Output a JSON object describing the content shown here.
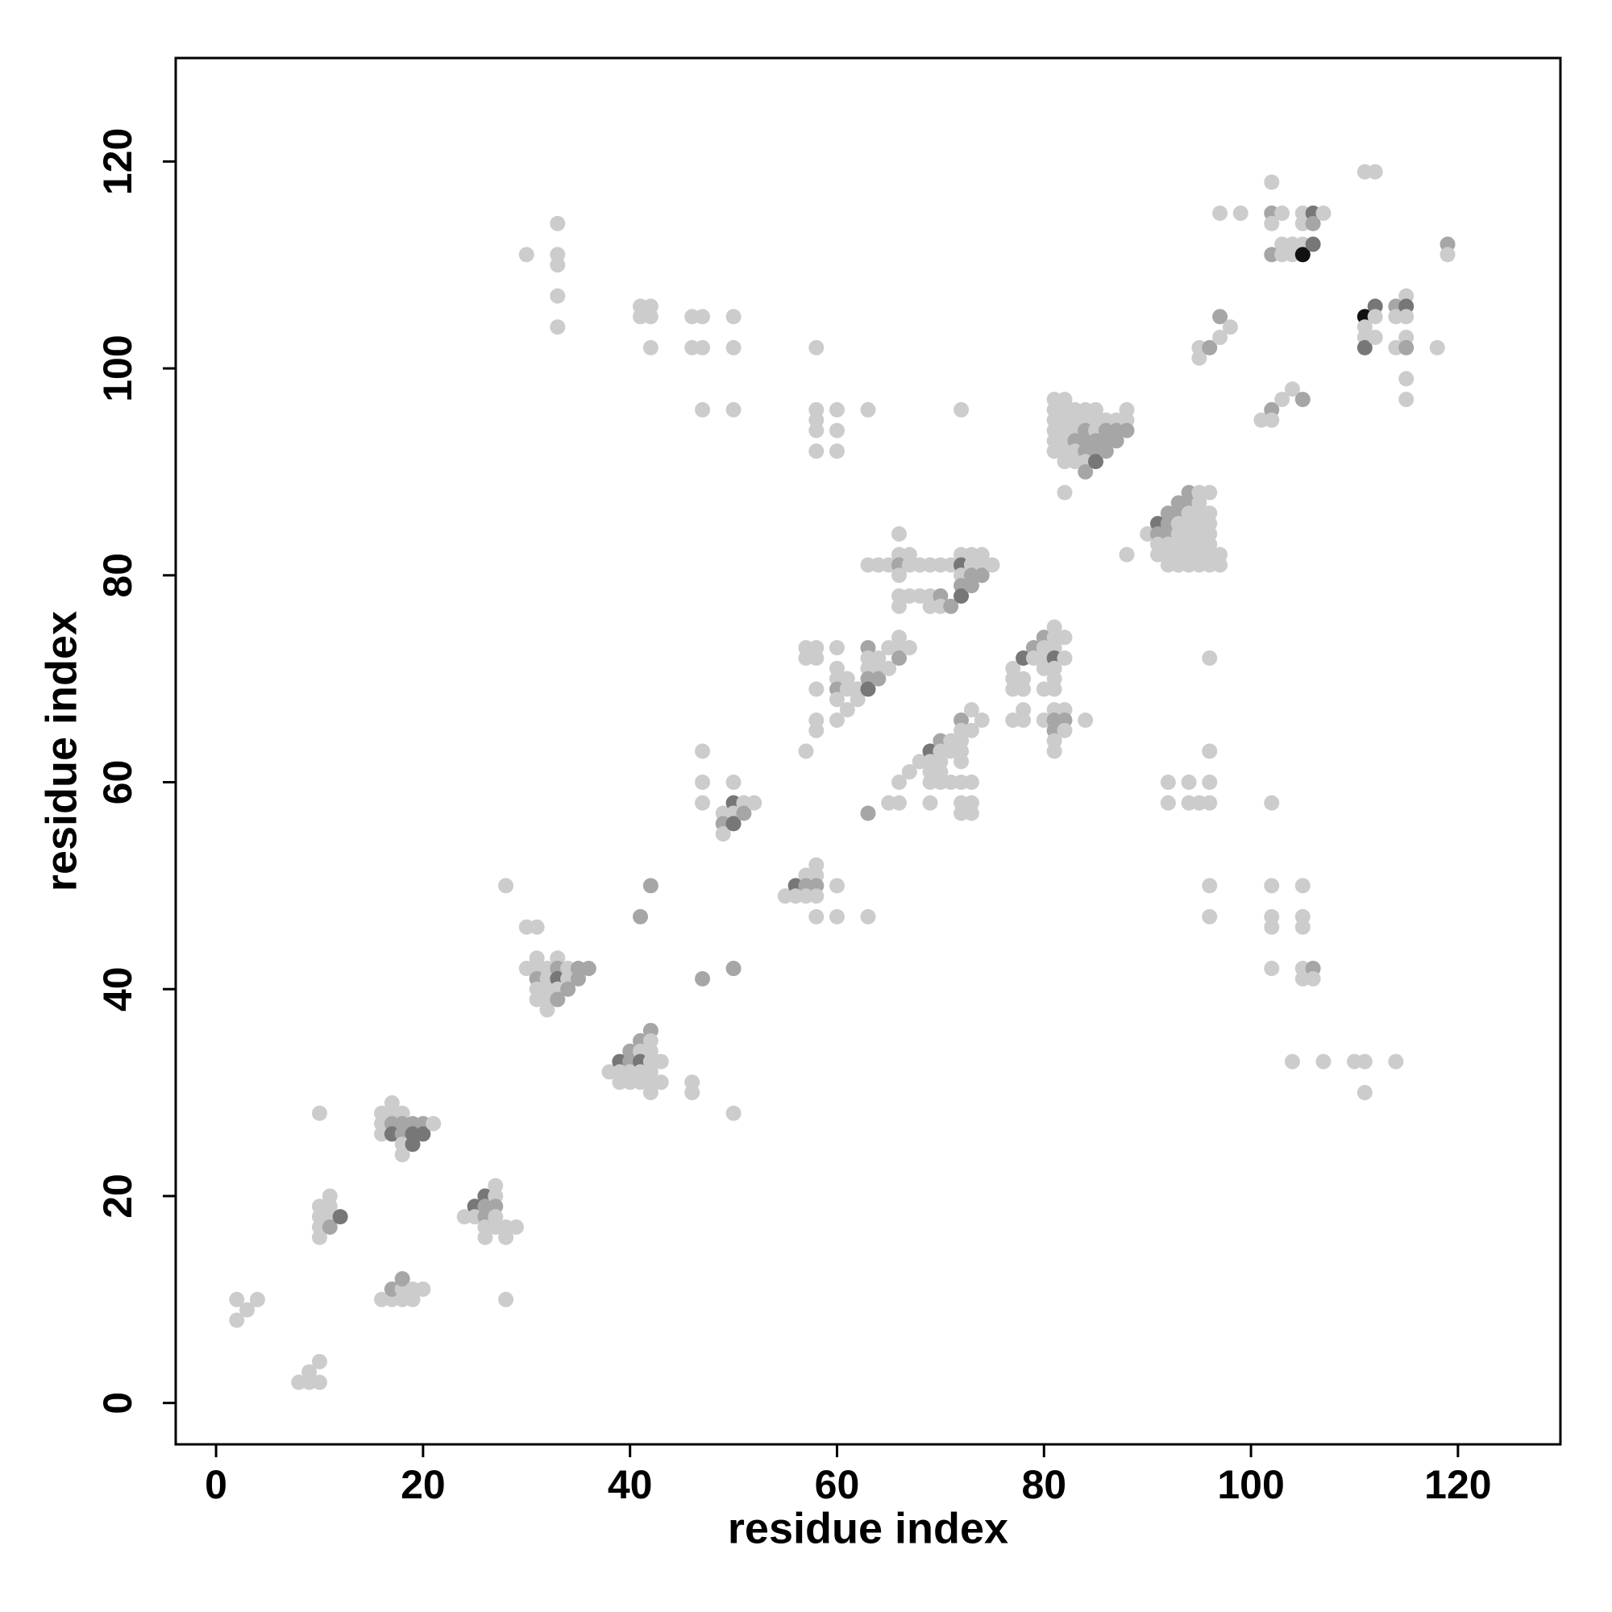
{
  "chart_data": {
    "type": "scatter",
    "xlabel": "residue index",
    "ylabel": "residue index",
    "xlim": [
      -3.9,
      129.9
    ],
    "ylim": [
      -4,
      130
    ],
    "xticks": [
      0,
      20,
      40,
      60,
      80,
      100,
      120
    ],
    "yticks": [
      0,
      20,
      40,
      60,
      80,
      100,
      120
    ],
    "x": [
      2,
      3,
      2,
      4,
      8,
      9,
      10,
      9,
      10,
      10,
      10,
      10,
      10,
      10,
      11,
      11,
      11,
      11,
      12,
      16,
      16,
      16,
      17,
      17,
      17,
      17,
      18,
      18,
      18,
      18,
      18,
      19,
      19,
      19,
      20,
      20,
      21,
      16,
      17,
      17,
      18,
      18,
      18,
      19,
      19,
      20,
      24,
      25,
      25,
      26,
      26,
      26,
      26,
      26,
      27,
      27,
      27,
      27,
      27,
      28,
      28,
      29,
      28,
      28,
      30,
      31,
      30,
      31,
      31,
      31,
      31,
      31,
      32,
      32,
      32,
      32,
      32,
      33,
      33,
      33,
      33,
      33,
      34,
      34,
      34,
      35,
      35,
      36,
      33,
      33,
      33,
      33,
      33,
      30,
      38,
      39,
      39,
      39,
      40,
      40,
      40,
      40,
      41,
      41,
      41,
      41,
      41,
      42,
      42,
      42,
      42,
      42,
      42,
      42,
      43,
      43,
      41,
      42,
      47,
      50,
      41,
      41,
      42,
      42,
      42,
      46,
      46,
      50,
      46,
      47,
      46,
      47,
      50,
      50,
      47,
      50,
      47,
      47,
      47,
      49,
      49,
      49,
      50,
      50,
      50,
      50,
      51,
      51,
      52,
      55,
      56,
      56,
      57,
      57,
      57,
      58,
      58,
      58,
      58,
      58,
      60,
      60,
      63,
      57,
      57,
      57,
      58,
      58,
      58,
      58,
      58,
      58,
      58,
      58,
      58,
      58,
      60,
      60,
      60,
      63,
      60,
      60,
      60,
      60,
      60,
      60,
      61,
      61,
      61,
      62,
      62,
      63,
      63,
      63,
      63,
      63,
      64,
      64,
      64,
      65,
      65,
      66,
      66,
      66,
      67,
      63,
      63,
      64,
      65,
      66,
      66,
      66,
      66,
      66,
      66,
      67,
      67,
      67,
      68,
      68,
      69,
      69,
      69,
      70,
      70,
      70,
      71,
      71,
      72,
      72,
      72,
      72,
      72,
      73,
      73,
      73,
      73,
      74,
      74,
      74,
      75,
      65,
      66,
      66,
      67,
      68,
      69,
      69,
      69,
      69,
      70,
      70,
      70,
      70,
      70,
      69,
      71,
      71,
      71,
      72,
      72,
      72,
      72,
      72,
      72,
      72,
      72,
      73,
      73,
      73,
      73,
      73,
      74,
      72,
      77,
      77,
      77,
      77,
      78,
      78,
      78,
      78,
      78,
      79,
      79,
      80,
      80,
      80,
      80,
      80,
      80,
      81,
      81,
      81,
      81,
      81,
      81,
      81,
      81,
      81,
      81,
      81,
      81,
      82,
      82,
      82,
      82,
      82,
      84,
      81,
      81,
      81,
      81,
      81,
      81,
      82,
      82,
      82,
      82,
      82,
      82,
      82,
      83,
      83,
      83,
      83,
      83,
      83,
      84,
      84,
      84,
      84,
      84,
      84,
      84,
      85,
      85,
      85,
      85,
      85,
      85,
      86,
      86,
      86,
      86,
      87,
      87,
      87,
      88,
      88,
      88,
      82,
      88,
      90,
      91,
      91,
      91,
      91,
      92,
      92,
      92,
      92,
      92,
      92,
      93,
      93,
      93,
      93,
      93,
      93,
      93,
      94,
      94,
      94,
      94,
      94,
      94,
      94,
      94,
      95,
      95,
      95,
      95,
      95,
      95,
      95,
      95,
      96,
      96,
      96,
      96,
      96,
      96,
      96,
      97,
      97,
      96,
      96,
      96,
      96,
      92,
      92,
      94,
      94,
      95,
      96,
      96,
      95,
      95,
      96,
      97,
      97,
      98,
      97,
      99,
      101,
      102,
      102,
      103,
      104,
      105,
      102,
      102,
      102,
      102,
      102,
      105,
      105,
      105,
      105,
      105,
      106,
      106,
      104,
      107,
      110,
      111,
      114,
      111,
      102,
      102,
      102,
      102,
      103,
      103,
      103,
      104,
      104,
      105,
      105,
      105,
      105,
      106,
      106,
      106,
      107,
      111,
      112,
      111,
      111,
      111,
      111,
      112,
      112,
      112,
      114,
      114,
      114,
      115,
      115,
      115,
      115,
      115,
      115,
      115,
      118,
      119,
      119
    ],
    "y": [
      10,
      9,
      8,
      10,
      2,
      2,
      2,
      3,
      4,
      28,
      19,
      18,
      17,
      16,
      20,
      19,
      18,
      17,
      18,
      28,
      27,
      26,
      29,
      28,
      27,
      26,
      28,
      27,
      26,
      25,
      24,
      27,
      26,
      25,
      27,
      26,
      27,
      10,
      10,
      11,
      10,
      11,
      12,
      10,
      11,
      11,
      18,
      19,
      18,
      20,
      19,
      18,
      17,
      16,
      21,
      20,
      19,
      18,
      17,
      17,
      16,
      17,
      10,
      50,
      46,
      46,
      42,
      43,
      42,
      41,
      40,
      39,
      42,
      41,
      40,
      39,
      38,
      43,
      42,
      41,
      40,
      39,
      42,
      41,
      40,
      42,
      41,
      42,
      114,
      111,
      110,
      107,
      104,
      111,
      32,
      33,
      32,
      31,
      34,
      33,
      32,
      31,
      35,
      34,
      33,
      32,
      31,
      36,
      35,
      34,
      33,
      32,
      31,
      30,
      33,
      31,
      47,
      50,
      41,
      42,
      106,
      105,
      106,
      105,
      102,
      31,
      30,
      28,
      105,
      105,
      102,
      102,
      105,
      102,
      96,
      96,
      63,
      60,
      58,
      57,
      56,
      55,
      60,
      58,
      57,
      56,
      58,
      57,
      58,
      49,
      50,
      49,
      51,
      50,
      49,
      52,
      51,
      50,
      49,
      47,
      50,
      47,
      47,
      63,
      73,
      72,
      73,
      72,
      69,
      66,
      65,
      102,
      96,
      95,
      94,
      92,
      96,
      94,
      92,
      96,
      73,
      71,
      70,
      69,
      68,
      66,
      70,
      69,
      67,
      69,
      68,
      73,
      72,
      71,
      70,
      69,
      72,
      71,
      70,
      73,
      71,
      74,
      73,
      72,
      73,
      57,
      81,
      81,
      81,
      84,
      82,
      81,
      80,
      78,
      77,
      82,
      81,
      78,
      81,
      78,
      81,
      78,
      77,
      81,
      78,
      77,
      81,
      77,
      82,
      81,
      80,
      79,
      78,
      82,
      81,
      80,
      79,
      82,
      81,
      80,
      81,
      58,
      58,
      60,
      61,
      62,
      63,
      62,
      61,
      60,
      64,
      63,
      62,
      61,
      60,
      58,
      64,
      63,
      60,
      66,
      65,
      64,
      63,
      62,
      60,
      58,
      57,
      67,
      65,
      60,
      58,
      57,
      66,
      96,
      71,
      70,
      69,
      66,
      72,
      70,
      69,
      67,
      66,
      73,
      72,
      74,
      73,
      72,
      71,
      69,
      66,
      75,
      74,
      73,
      72,
      71,
      70,
      69,
      67,
      66,
      65,
      64,
      63,
      74,
      72,
      67,
      66,
      65,
      66,
      97,
      96,
      95,
      94,
      93,
      92,
      97,
      96,
      95,
      94,
      93,
      92,
      91,
      96,
      95,
      94,
      93,
      92,
      91,
      96,
      95,
      94,
      93,
      92,
      91,
      90,
      96,
      95,
      94,
      93,
      92,
      91,
      95,
      94,
      93,
      92,
      95,
      94,
      93,
      96,
      95,
      94,
      88,
      82,
      84,
      85,
      84,
      83,
      82,
      86,
      85,
      84,
      83,
      82,
      81,
      87,
      86,
      85,
      84,
      83,
      82,
      81,
      88,
      87,
      86,
      85,
      84,
      83,
      82,
      81,
      88,
      87,
      86,
      85,
      84,
      83,
      82,
      81,
      88,
      86,
      85,
      84,
      83,
      82,
      81,
      82,
      81,
      72,
      63,
      60,
      58,
      60,
      58,
      60,
      58,
      58,
      50,
      47,
      102,
      101,
      102,
      105,
      103,
      104,
      115,
      115,
      95,
      96,
      95,
      97,
      98,
      97,
      58,
      50,
      47,
      46,
      42,
      50,
      47,
      46,
      42,
      41,
      42,
      41,
      33,
      33,
      33,
      33,
      33,
      30,
      118,
      115,
      114,
      111,
      115,
      112,
      111,
      111,
      112,
      115,
      114,
      112,
      111,
      115,
      114,
      112,
      115,
      119,
      119,
      105,
      104,
      103,
      102,
      106,
      105,
      103,
      106,
      105,
      102,
      107,
      106,
      105,
      103,
      102,
      99,
      97,
      102,
      112,
      111
    ],
    "colors": [
      "#cccccc",
      "#cccccc",
      "#cccccc",
      "#cccccc",
      "#cccccc",
      "#cccccc",
      "#cccccc",
      "#cccccc",
      "#cccccc",
      "#cccccc",
      "#cccccc",
      "#cccccc",
      "#cccccc",
      "#cccccc",
      "#cccccc",
      "#cccccc",
      "#cccccc",
      "#a6a6a6",
      "#777777",
      "#cccccc",
      "#cccccc",
      "#cccccc",
      "#cccccc",
      "#cccccc",
      "#a6a6a6",
      "#777777",
      "#cccccc",
      "#a6a6a6",
      "#a6a6a6",
      "#cccccc",
      "#cccccc",
      "#a6a6a6",
      "#777777",
      "#777777",
      "#a6a6a6",
      "#777777",
      "#cccccc",
      "#cccccc",
      "#cccccc",
      "#a6a6a6",
      "#cccccc",
      "#cccccc",
      "#a6a6a6",
      "#cccccc",
      "#cccccc",
      "#cccccc",
      "#cccccc",
      "#777777",
      "#cccccc",
      "#777777",
      "#a6a6a6",
      "#a6a6a6",
      "#cccccc",
      "#cccccc",
      "#cccccc",
      "#cccccc",
      "#a6a6a6",
      "#cccccc",
      "#cccccc",
      "#cccccc",
      "#cccccc",
      "#cccccc",
      "#cccccc",
      "#cccccc",
      "#cccccc",
      "#cccccc",
      "#cccccc",
      "#cccccc",
      "#cccccc",
      "#a6a6a6",
      "#cccccc",
      "#cccccc",
      "#cccccc",
      "#cccccc",
      "#cccccc",
      "#cccccc",
      "#cccccc",
      "#cccccc",
      "#a6a6a6",
      "#777777",
      "#cccccc",
      "#a6a6a6",
      "#cccccc",
      "#cccccc",
      "#a6a6a6",
      "#a6a6a6",
      "#a6a6a6",
      "#a6a6a6",
      "#cccccc",
      "#cccccc",
      "#cccccc",
      "#cccccc",
      "#cccccc",
      "#cccccc",
      "#cccccc",
      "#777777",
      "#cccccc",
      "#cccccc",
      "#a6a6a6",
      "#a6a6a6",
      "#cccccc",
      "#cccccc",
      "#a6a6a6",
      "#cccccc",
      "#777777",
      "#cccccc",
      "#cccccc",
      "#a6a6a6",
      "#cccccc",
      "#cccccc",
      "#cccccc",
      "#cccccc",
      "#cccccc",
      "#cccccc",
      "#cccccc",
      "#cccccc",
      "#a6a6a6",
      "#a6a6a6",
      "#a6a6a6",
      "#a6a6a6",
      "#cccccc",
      "#cccccc",
      "#cccccc",
      "#cccccc",
      "#cccccc",
      "#cccccc",
      "#cccccc",
      "#cccccc",
      "#cccccc",
      "#cccccc",
      "#cccccc",
      "#cccccc",
      "#cccccc",
      "#cccccc",
      "#cccccc",
      "#cccccc",
      "#cccccc",
      "#cccccc",
      "#cccccc",
      "#cccccc",
      "#a6a6a6",
      "#cccccc",
      "#cccccc",
      "#777777",
      "#cccccc",
      "#777777",
      "#cccccc",
      "#a6a6a6",
      "#cccccc",
      "#cccccc",
      "#777777",
      "#cccccc",
      "#cccccc",
      "#a6a6a6",
      "#cccccc",
      "#cccccc",
      "#cccccc",
      "#a6a6a6",
      "#cccccc",
      "#cccccc",
      "#cccccc",
      "#cccccc",
      "#cccccc",
      "#cccccc",
      "#cccccc",
      "#cccccc",
      "#cccccc",
      "#cccccc",
      "#cccccc",
      "#cccccc",
      "#cccccc",
      "#cccccc",
      "#cccccc",
      "#cccccc",
      "#cccccc",
      "#cccccc",
      "#cccccc",
      "#cccccc",
      "#cccccc",
      "#cccccc",
      "#cccccc",
      "#cccccc",
      "#cccccc",
      "#a6a6a6",
      "#cccccc",
      "#cccccc",
      "#cccccc",
      "#cccccc",
      "#cccccc",
      "#cccccc",
      "#cccccc",
      "#a6a6a6",
      "#cccccc",
      "#cccccc",
      "#a6a6a6",
      "#777777",
      "#cccccc",
      "#cccccc",
      "#a6a6a6",
      "#cccccc",
      "#cccccc",
      "#cccccc",
      "#cccccc",
      "#a6a6a6",
      "#cccccc",
      "#a6a6a6",
      "#cccccc",
      "#cccccc",
      "#cccccc",
      "#cccccc",
      "#cccccc",
      "#a6a6a6",
      "#cccccc",
      "#cccccc",
      "#cccccc",
      "#cccccc",
      "#cccccc",
      "#cccccc",
      "#cccccc",
      "#cccccc",
      "#cccccc",
      "#cccccc",
      "#cccccc",
      "#cccccc",
      "#a6a6a6",
      "#cccccc",
      "#cccccc",
      "#a6a6a6",
      "#cccccc",
      "#777777",
      "#cccccc",
      "#a6a6a6",
      "#777777",
      "#cccccc",
      "#cccccc",
      "#a6a6a6",
      "#a6a6a6",
      "#cccccc",
      "#cccccc",
      "#a6a6a6",
      "#cccccc",
      "#cccccc",
      "#cccccc",
      "#cccccc",
      "#cccccc",
      "#cccccc",
      "#777777",
      "#cccccc",
      "#cccccc",
      "#cccccc",
      "#a6a6a6",
      "#cccccc",
      "#cccccc",
      "#cccccc",
      "#cccccc",
      "#cccccc",
      "#cccccc",
      "#cccccc",
      "#cccccc",
      "#a6a6a6",
      "#cccccc",
      "#cccccc",
      "#cccccc",
      "#cccccc",
      "#cccccc",
      "#cccccc",
      "#cccccc",
      "#cccccc",
      "#cccccc",
      "#cccccc",
      "#cccccc",
      "#cccccc",
      "#cccccc",
      "#cccccc",
      "#cccccc",
      "#cccccc",
      "#cccccc",
      "#cccccc",
      "#777777",
      "#cccccc",
      "#cccccc",
      "#cccccc",
      "#cccccc",
      "#a6a6a6",
      "#cccccc",
      "#a6a6a6",
      "#cccccc",
      "#cccccc",
      "#cccccc",
      "#cccccc",
      "#cccccc",
      "#cccccc",
      "#cccccc",
      "#cccccc",
      "#777777",
      "#cccccc",
      "#cccccc",
      "#cccccc",
      "#cccccc",
      "#a6a6a6",
      "#a6a6a6",
      "#cccccc",
      "#cccccc",
      "#cccccc",
      "#cccccc",
      "#cccccc",
      "#a6a6a6",
      "#cccccc",
      "#cccccc",
      "#cccccc",
      "#cccccc",
      "#cccccc",
      "#cccccc",
      "#cccccc",
      "#cccccc",
      "#cccccc",
      "#cccccc",
      "#cccccc",
      "#cccccc",
      "#cccccc",
      "#cccccc",
      "#cccccc",
      "#cccccc",
      "#cccccc",
      "#cccccc",
      "#a6a6a6",
      "#cccccc",
      "#cccccc",
      "#cccccc",
      "#cccccc",
      "#a6a6a6",
      "#a6a6a6",
      "#a6a6a6",
      "#cccccc",
      "#a6a6a6",
      "#cccccc",
      "#cccccc",
      "#cccccc",
      "#a6a6a6",
      "#a6a6a6",
      "#777777",
      "#cccccc",
      "#a6a6a6",
      "#a6a6a6",
      "#a6a6a6",
      "#cccccc",
      "#a6a6a6",
      "#a6a6a6",
      "#cccccc",
      "#cccccc",
      "#a6a6a6",
      "#cccccc",
      "#cccccc",
      "#cccccc",
      "#777777",
      "#a6a6a6",
      "#cccccc",
      "#cccccc",
      "#a6a6a6",
      "#a6a6a6",
      "#a6a6a6",
      "#cccccc",
      "#cccccc",
      "#cccccc",
      "#a6a6a6",
      "#a6a6a6",
      "#cccccc",
      "#cccccc",
      "#cccccc",
      "#cccccc",
      "#cccccc",
      "#a6a6a6",
      "#a6a6a6",
      "#cccccc",
      "#cccccc",
      "#cccccc",
      "#cccccc",
      "#cccccc",
      "#cccccc",
      "#cccccc",
      "#cccccc",
      "#cccccc",
      "#cccccc",
      "#cccccc",
      "#cccccc",
      "#cccccc",
      "#cccccc",
      "#cccccc",
      "#cccccc",
      "#cccccc",
      "#cccccc",
      "#cccccc",
      "#cccccc",
      "#cccccc",
      "#cccccc",
      "#cccccc",
      "#cccccc",
      "#cccccc",
      "#cccccc",
      "#cccccc",
      "#cccccc",
      "#cccccc",
      "#cccccc",
      "#cccccc",
      "#cccccc",
      "#cccccc",
      "#cccccc",
      "#cccccc",
      "#cccccc",
      "#a6a6a6",
      "#a6a6a6",
      "#cccccc",
      "#cccccc",
      "#cccccc",
      "#cccccc",
      "#cccccc",
      "#a6a6a6",
      "#cccccc",
      "#cccccc",
      "#cccccc",
      "#a6a6a6",
      "#cccccc",
      "#cccccc",
      "#cccccc",
      "#cccccc",
      "#cccccc",
      "#cccccc",
      "#cccccc",
      "#cccccc",
      "#cccccc",
      "#cccccc",
      "#a6a6a6",
      "#cccccc",
      "#cccccc",
      "#cccccc",
      "#cccccc",
      "#cccccc",
      "#cccccc",
      "#cccccc",
      "#cccccc",
      "#a6a6a6",
      "#cccccc",
      "#a6a6a6",
      "#cccccc",
      "#cccccc",
      "#cccccc",
      "#cccccc",
      "#cccccc",
      "#cccccc",
      "#cccccc",
      "#cccccc",
      "#111111",
      "#777777",
      "#a6a6a6",
      "#777777",
      "#cccccc",
      "#cccccc",
      "#cccccc",
      "#111111",
      "#cccccc",
      "#cccccc",
      "#777777",
      "#777777",
      "#cccccc",
      "#cccccc",
      "#a6a6a6",
      "#cccccc",
      "#cccccc",
      "#cccccc",
      "#777777",
      "#cccccc",
      "#cccccc",
      "#a6a6a6",
      "#cccccc",
      "#cccccc",
      "#cccccc",
      "#a6a6a6",
      "#cccccc"
    ]
  }
}
